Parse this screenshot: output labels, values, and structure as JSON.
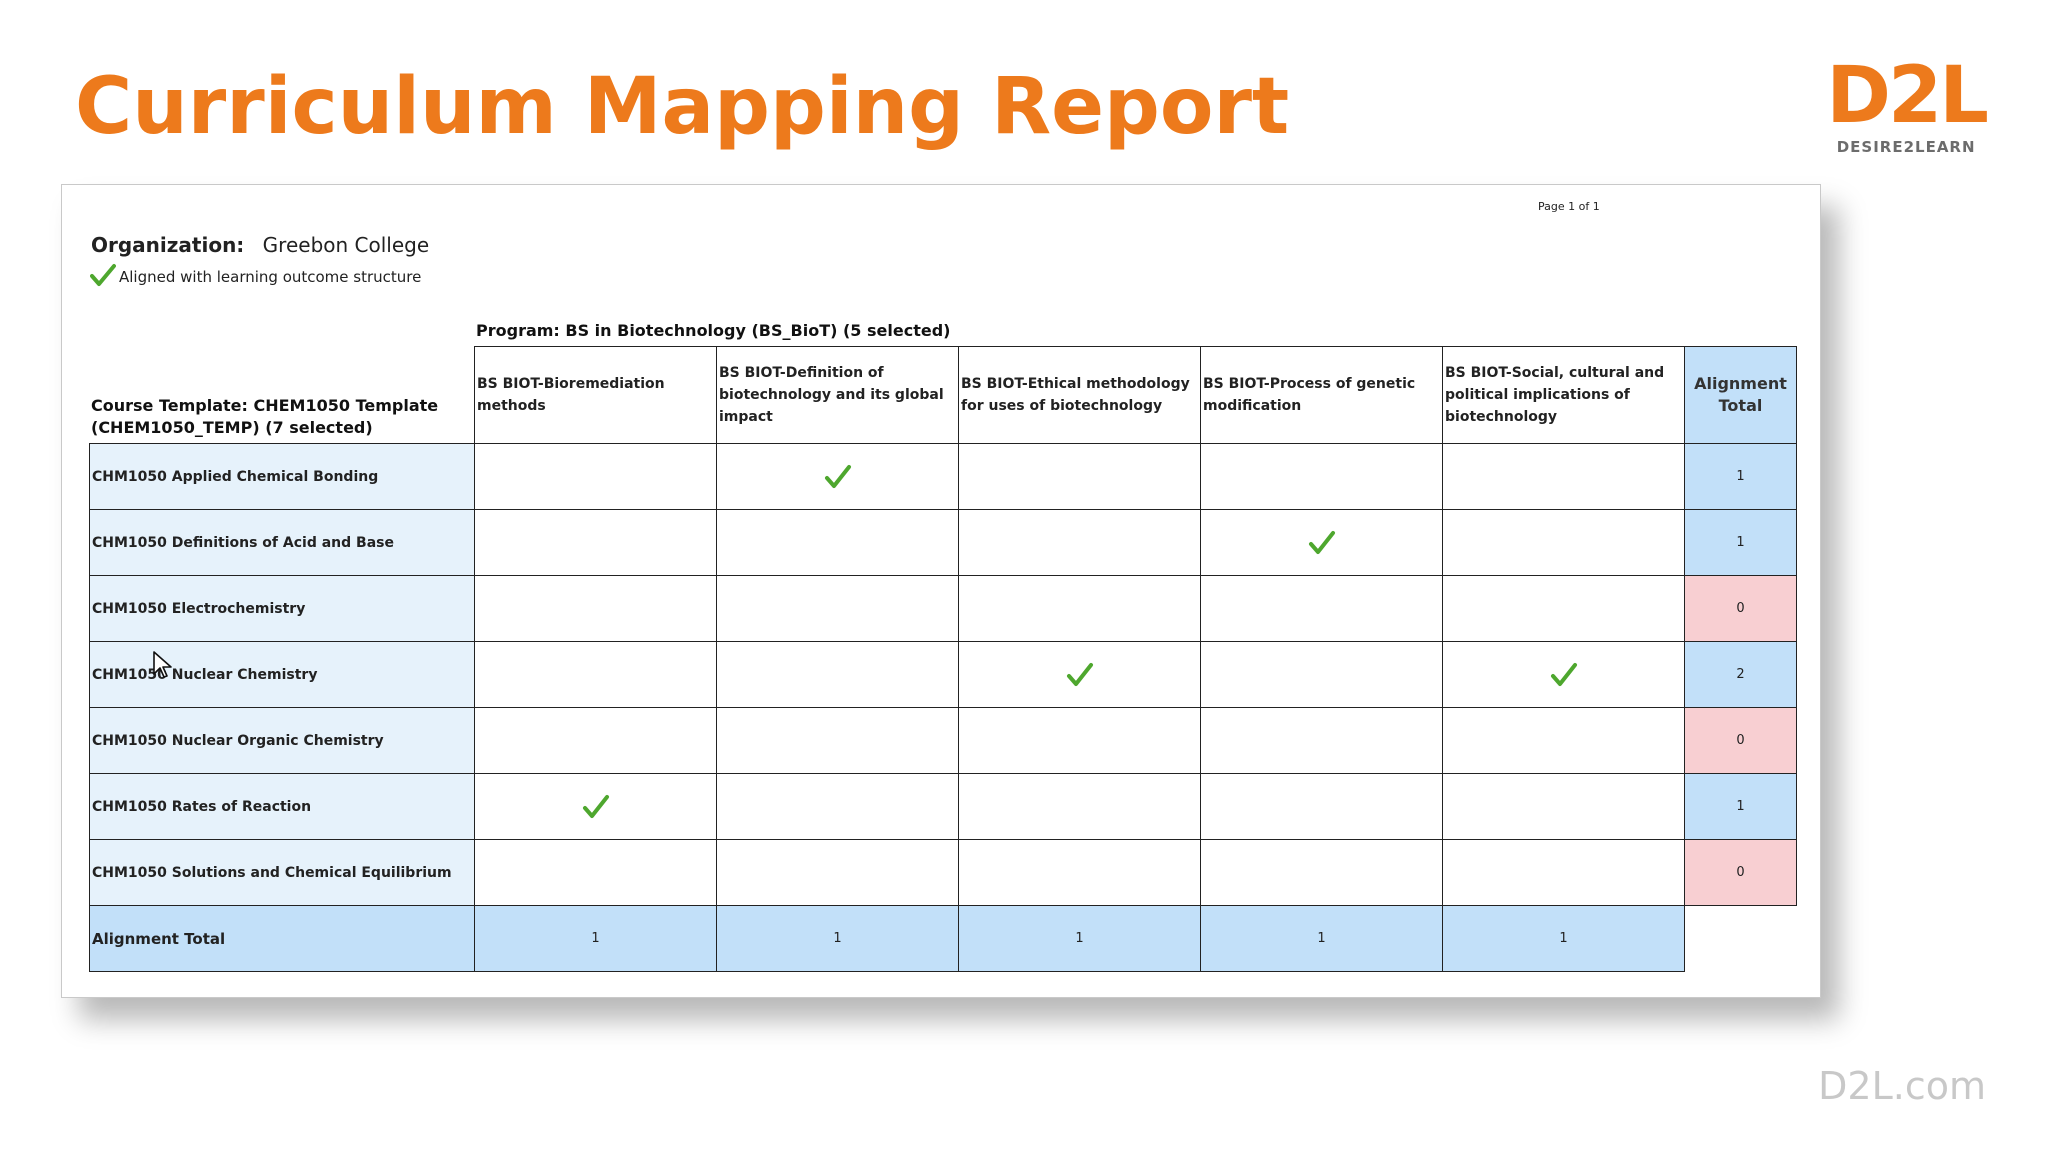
{
  "slide": {
    "title": "Curriculum Mapping Report",
    "logo_mark": "D2L",
    "logo_sub": "DESIRE2LEARN",
    "footer_url": "D2L.com"
  },
  "report": {
    "page_label": "Page 1 of 1",
    "organization_label": "Organization:",
    "organization_value": "Greebon College",
    "aligned_legend": "Aligned with learning outcome structure",
    "program_label": "Program: BS in Biotechnology (BS_BioT) (5 selected)",
    "course_template_label": "Course Template: CHEM1050 Template (CHEM1050_TEMP) (7 selected)",
    "columns": [
      "BS BIOT-Bioremediation methods",
      "BS BIOT-Definition of biotechnology and its global impact",
      "BS BIOT-Ethical methodology for uses of biotechnology",
      "BS BIOT-Process of genetic modification",
      "BS BIOT-Social, cultural and political implications of biotechnology"
    ],
    "total_column_label": "Alignment Total",
    "rows": [
      {
        "course": "CHM1050 Applied Chemical Bonding",
        "checks": [
          false,
          true,
          false,
          false,
          false
        ],
        "total": "1"
      },
      {
        "course": "CHM1050 Definitions of Acid and Base",
        "checks": [
          false,
          false,
          false,
          true,
          false
        ],
        "total": "1"
      },
      {
        "course": "CHM1050 Electrochemistry",
        "checks": [
          false,
          false,
          false,
          false,
          false
        ],
        "total": "0"
      },
      {
        "course": "CHM1050 Nuclear Chemistry",
        "checks": [
          false,
          false,
          true,
          false,
          true
        ],
        "total": "2"
      },
      {
        "course": "CHM1050 Nuclear Organic Chemistry",
        "checks": [
          false,
          false,
          false,
          false,
          false
        ],
        "total": "0"
      },
      {
        "course": "CHM1050 Rates of Reaction",
        "checks": [
          true,
          false,
          false,
          false,
          false
        ],
        "total": "1"
      },
      {
        "course": "CHM1050 Solutions and Chemical Equilibrium",
        "checks": [
          false,
          false,
          false,
          false,
          false
        ],
        "total": "0"
      }
    ],
    "footer_label": "Alignment Total",
    "footer_totals": [
      "1",
      "1",
      "1",
      "1",
      "1"
    ]
  },
  "colors": {
    "title_orange": "#ed7a1c",
    "total_blue": "#c2e0f9",
    "row_label_blue": "#e6f2fb",
    "zero_pink": "#f8cfd2",
    "check_green": "#4ea72e"
  },
  "icons": {
    "check": "check-icon",
    "cursor": "mouse-pointer-icon"
  }
}
